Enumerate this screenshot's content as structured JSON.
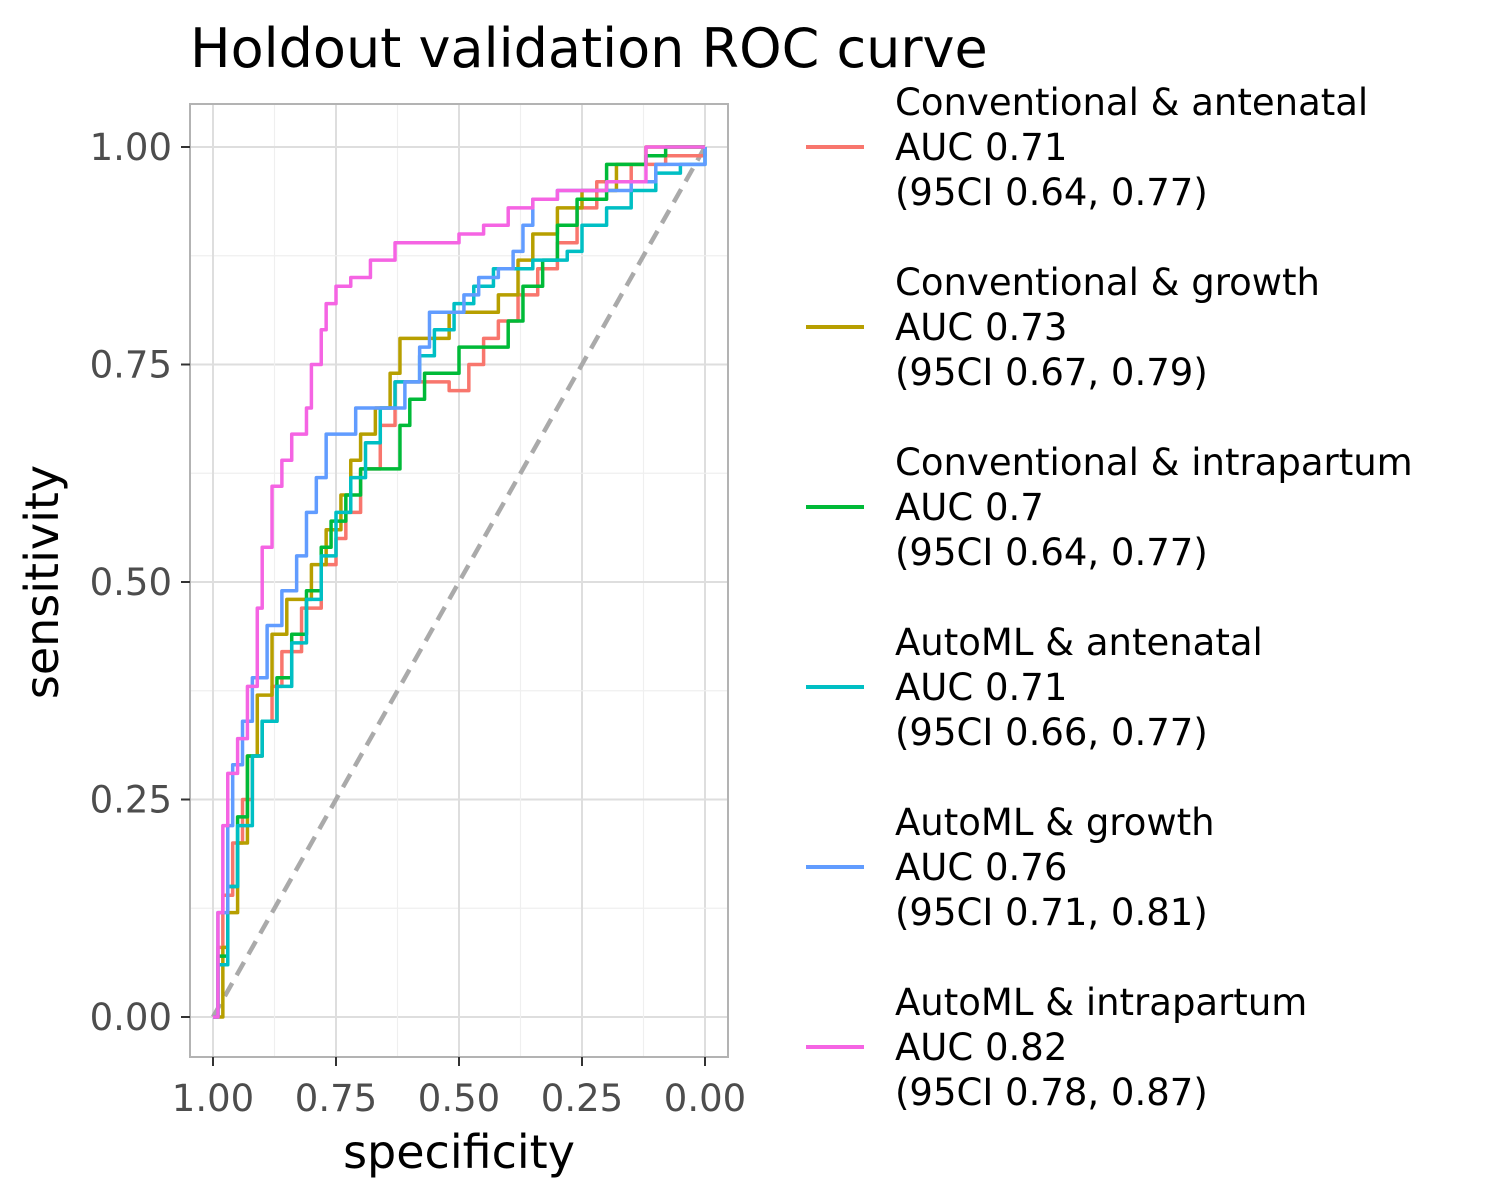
{
  "chart_data": {
    "type": "line",
    "title": "Holdout validation ROC curve",
    "xlabel": "specificity",
    "ylabel": "sensitivity",
    "x_reversed": true,
    "xlim": [
      1.0,
      0.0
    ],
    "ylim": [
      0.0,
      1.0
    ],
    "x_ticks": [
      "1.00",
      "0.75",
      "0.50",
      "0.25",
      "0.00"
    ],
    "y_ticks": [
      "0.00",
      "0.25",
      "0.50",
      "0.75",
      "1.00"
    ],
    "grid": true,
    "legend_position": "right",
    "reference_line": {
      "style": "dashed",
      "color": "#AAAAAA",
      "points": [
        [
          1.0,
          0.0
        ],
        [
          0.0,
          1.0
        ]
      ]
    },
    "series": [
      {
        "name": "Conventional & antenatal",
        "auc_label": "AUC 0.71",
        "ci_label": "(95CI 0.64, 0.77)",
        "color": "#F8766D",
        "points": [
          [
            1.0,
            0.0
          ],
          [
            0.99,
            0.08
          ],
          [
            0.98,
            0.14
          ],
          [
            0.96,
            0.2
          ],
          [
            0.94,
            0.25
          ],
          [
            0.92,
            0.3
          ],
          [
            0.9,
            0.34
          ],
          [
            0.88,
            0.38
          ],
          [
            0.86,
            0.42
          ],
          [
            0.82,
            0.47
          ],
          [
            0.78,
            0.52
          ],
          [
            0.75,
            0.55
          ],
          [
            0.73,
            0.58
          ],
          [
            0.7,
            0.63
          ],
          [
            0.66,
            0.68
          ],
          [
            0.63,
            0.73
          ],
          [
            0.58,
            0.73
          ],
          [
            0.52,
            0.72
          ],
          [
            0.48,
            0.75
          ],
          [
            0.45,
            0.78
          ],
          [
            0.42,
            0.8
          ],
          [
            0.38,
            0.83
          ],
          [
            0.34,
            0.86
          ],
          [
            0.3,
            0.89
          ],
          [
            0.26,
            0.93
          ],
          [
            0.22,
            0.96
          ],
          [
            0.15,
            0.98
          ],
          [
            0.08,
            0.99
          ],
          [
            0.0,
            1.0
          ]
        ]
      },
      {
        "name": "Conventional & growth",
        "auc_label": "AUC 0.73",
        "ci_label": "(95CI 0.67, 0.79)",
        "color": "#B79F00",
        "points": [
          [
            1.0,
            0.0
          ],
          [
            0.98,
            0.08
          ],
          [
            0.97,
            0.12
          ],
          [
            0.95,
            0.2
          ],
          [
            0.93,
            0.3
          ],
          [
            0.91,
            0.37
          ],
          [
            0.88,
            0.44
          ],
          [
            0.85,
            0.48
          ],
          [
            0.8,
            0.52
          ],
          [
            0.77,
            0.56
          ],
          [
            0.74,
            0.6
          ],
          [
            0.72,
            0.64
          ],
          [
            0.7,
            0.67
          ],
          [
            0.67,
            0.7
          ],
          [
            0.64,
            0.74
          ],
          [
            0.62,
            0.78
          ],
          [
            0.58,
            0.78
          ],
          [
            0.55,
            0.78
          ],
          [
            0.52,
            0.81
          ],
          [
            0.46,
            0.81
          ],
          [
            0.42,
            0.83
          ],
          [
            0.38,
            0.87
          ],
          [
            0.35,
            0.9
          ],
          [
            0.3,
            0.93
          ],
          [
            0.25,
            0.95
          ],
          [
            0.18,
            0.98
          ],
          [
            0.12,
            1.0
          ],
          [
            0.0,
            1.0
          ]
        ]
      },
      {
        "name": "Conventional & intrapartum",
        "auc_label": "AUC 0.7",
        "ci_label": "(95CI 0.64, 0.77)",
        "color": "#00BA38",
        "points": [
          [
            1.0,
            0.0
          ],
          [
            0.99,
            0.07
          ],
          [
            0.97,
            0.15
          ],
          [
            0.95,
            0.23
          ],
          [
            0.93,
            0.3
          ],
          [
            0.9,
            0.34
          ],
          [
            0.87,
            0.39
          ],
          [
            0.84,
            0.44
          ],
          [
            0.81,
            0.49
          ],
          [
            0.78,
            0.54
          ],
          [
            0.76,
            0.57
          ],
          [
            0.73,
            0.6
          ],
          [
            0.7,
            0.63
          ],
          [
            0.65,
            0.63
          ],
          [
            0.62,
            0.68
          ],
          [
            0.6,
            0.71
          ],
          [
            0.57,
            0.74
          ],
          [
            0.53,
            0.74
          ],
          [
            0.5,
            0.77
          ],
          [
            0.43,
            0.77
          ],
          [
            0.4,
            0.8
          ],
          [
            0.37,
            0.84
          ],
          [
            0.33,
            0.87
          ],
          [
            0.3,
            0.91
          ],
          [
            0.26,
            0.94
          ],
          [
            0.2,
            0.98
          ],
          [
            0.12,
            0.99
          ],
          [
            0.08,
            1.0
          ],
          [
            0.0,
            1.0
          ]
        ]
      },
      {
        "name": "AutoML & antenatal",
        "auc_label": "AUC 0.71",
        "ci_label": "(95CI 0.66, 0.77)",
        "color": "#00BFC4",
        "points": [
          [
            1.0,
            0.0
          ],
          [
            0.99,
            0.06
          ],
          [
            0.97,
            0.15
          ],
          [
            0.95,
            0.22
          ],
          [
            0.92,
            0.3
          ],
          [
            0.9,
            0.34
          ],
          [
            0.87,
            0.38
          ],
          [
            0.84,
            0.43
          ],
          [
            0.81,
            0.48
          ],
          [
            0.78,
            0.53
          ],
          [
            0.75,
            0.58
          ],
          [
            0.72,
            0.62
          ],
          [
            0.69,
            0.66
          ],
          [
            0.66,
            0.7
          ],
          [
            0.63,
            0.73
          ],
          [
            0.58,
            0.76
          ],
          [
            0.55,
            0.79
          ],
          [
            0.51,
            0.82
          ],
          [
            0.47,
            0.84
          ],
          [
            0.43,
            0.86
          ],
          [
            0.38,
            0.86
          ],
          [
            0.35,
            0.87
          ],
          [
            0.28,
            0.88
          ],
          [
            0.25,
            0.91
          ],
          [
            0.2,
            0.93
          ],
          [
            0.15,
            0.95
          ],
          [
            0.1,
            0.97
          ],
          [
            0.05,
            0.98
          ],
          [
            0.0,
            1.0
          ]
        ]
      },
      {
        "name": "AutoML & growth",
        "auc_label": "AUC 0.76",
        "ci_label": "(95CI 0.71, 0.81)",
        "color": "#619CFF",
        "points": [
          [
            1.0,
            0.0
          ],
          [
            0.99,
            0.12
          ],
          [
            0.97,
            0.22
          ],
          [
            0.96,
            0.29
          ],
          [
            0.94,
            0.34
          ],
          [
            0.92,
            0.39
          ],
          [
            0.89,
            0.45
          ],
          [
            0.86,
            0.49
          ],
          [
            0.83,
            0.53
          ],
          [
            0.81,
            0.58
          ],
          [
            0.79,
            0.62
          ],
          [
            0.77,
            0.67
          ],
          [
            0.74,
            0.67
          ],
          [
            0.71,
            0.7
          ],
          [
            0.64,
            0.7
          ],
          [
            0.61,
            0.73
          ],
          [
            0.58,
            0.77
          ],
          [
            0.56,
            0.81
          ],
          [
            0.52,
            0.81
          ],
          [
            0.49,
            0.83
          ],
          [
            0.46,
            0.85
          ],
          [
            0.42,
            0.86
          ],
          [
            0.39,
            0.88
          ],
          [
            0.37,
            0.91
          ],
          [
            0.35,
            0.94
          ],
          [
            0.3,
            0.95
          ],
          [
            0.25,
            0.95
          ],
          [
            0.2,
            0.95
          ],
          [
            0.15,
            0.96
          ],
          [
            0.1,
            0.98
          ],
          [
            0.05,
            0.98
          ],
          [
            0.0,
            1.0
          ]
        ]
      },
      {
        "name": "AutoML & intrapartum",
        "auc_label": "AUC 0.82",
        "ci_label": "(95CI 0.78, 0.87)",
        "color": "#F564E3",
        "points": [
          [
            1.0,
            0.0
          ],
          [
            0.99,
            0.12
          ],
          [
            0.98,
            0.22
          ],
          [
            0.97,
            0.28
          ],
          [
            0.95,
            0.32
          ],
          [
            0.93,
            0.38
          ],
          [
            0.91,
            0.47
          ],
          [
            0.9,
            0.54
          ],
          [
            0.88,
            0.61
          ],
          [
            0.86,
            0.64
          ],
          [
            0.84,
            0.67
          ],
          [
            0.81,
            0.7
          ],
          [
            0.8,
            0.75
          ],
          [
            0.78,
            0.79
          ],
          [
            0.77,
            0.82
          ],
          [
            0.75,
            0.84
          ],
          [
            0.72,
            0.85
          ],
          [
            0.68,
            0.87
          ],
          [
            0.63,
            0.89
          ],
          [
            0.55,
            0.89
          ],
          [
            0.5,
            0.9
          ],
          [
            0.45,
            0.91
          ],
          [
            0.4,
            0.93
          ],
          [
            0.35,
            0.94
          ],
          [
            0.3,
            0.95
          ],
          [
            0.2,
            0.96
          ],
          [
            0.12,
            1.0
          ],
          [
            0.0,
            1.0
          ]
        ]
      }
    ]
  }
}
